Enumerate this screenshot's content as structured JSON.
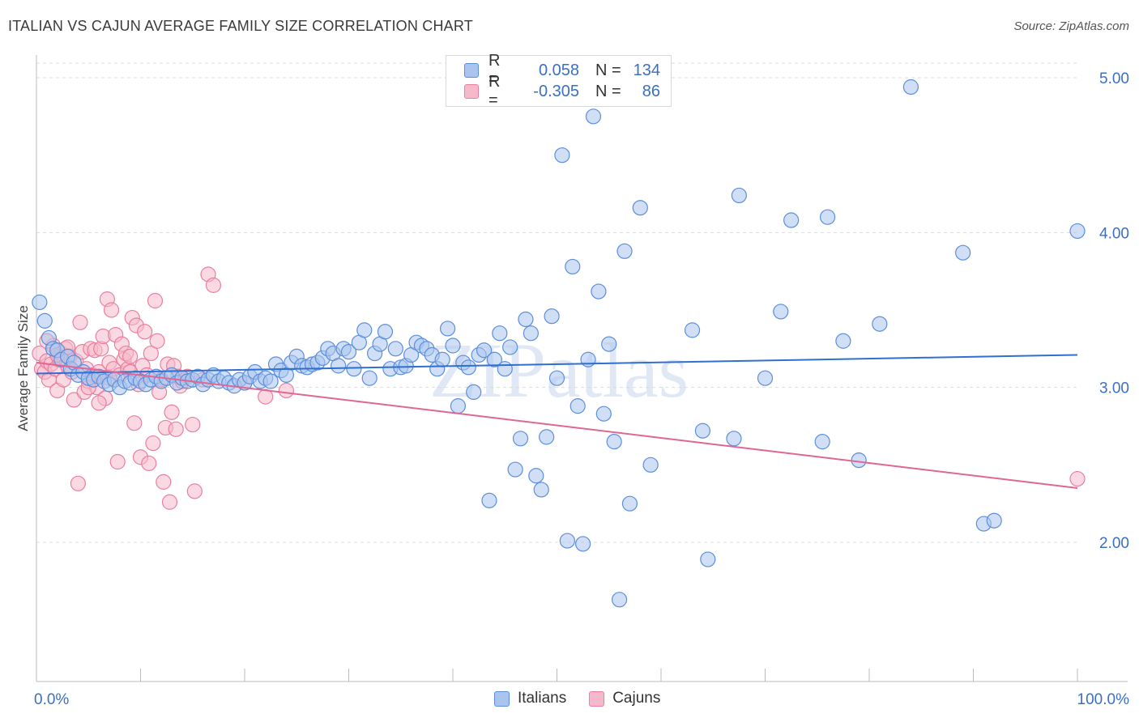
{
  "title": "ITALIAN VS CAJUN AVERAGE FAMILY SIZE CORRELATION CHART",
  "source": "Source: ZipAtlas.com",
  "watermark": "ZIPatlas",
  "legend": {
    "rows": [
      {
        "r_label": "R =",
        "r_value": "0.058",
        "n_label": "N =",
        "n_value": "134"
      },
      {
        "r_label": "R =",
        "r_value": "-0.305",
        "n_label": "N =",
        "n_value": "86"
      }
    ]
  },
  "bottom_legend": {
    "italians": "Italians",
    "cajuns": "Cajuns"
  },
  "colors": {
    "italians_fill": "#a9c4ee",
    "italians_stroke": "#5b8fdc",
    "italians_line": "#2f6fd0",
    "cajuns_fill": "#f6b9cb",
    "cajuns_stroke": "#ea7fa0",
    "cajuns_line": "#e06695",
    "axis_text": "#3b6fc4",
    "grid": "#dddddd"
  },
  "chart_data": {
    "type": "scatter",
    "title": "ITALIAN VS CAJUN AVERAGE FAMILY SIZE CORRELATION CHART",
    "xlabel": "",
    "ylabel": "Average Family Size",
    "xlim": [
      0,
      100
    ],
    "ylim": [
      1.0,
      5.2
    ],
    "x_tick_labels": [
      "0.0%",
      "100.0%"
    ],
    "y_ticks": [
      2.0,
      3.0,
      4.0,
      5.0
    ],
    "y_tick_labels": [
      "2.00",
      "3.00",
      "4.00",
      "5.00"
    ],
    "grid": true,
    "series": [
      {
        "name": "Italians",
        "r": 0.058,
        "n": 134,
        "trend": {
          "x": [
            0,
            100
          ],
          "y": [
            3.09,
            3.21
          ]
        },
        "points": [
          [
            0.3,
            3.55
          ],
          [
            0.8,
            3.43
          ],
          [
            1.2,
            3.32
          ],
          [
            1.6,
            3.25
          ],
          [
            2.0,
            3.24
          ],
          [
            2.4,
            3.18
          ],
          [
            3.0,
            3.2
          ],
          [
            3.3,
            3.12
          ],
          [
            3.6,
            3.16
          ],
          [
            4.0,
            3.08
          ],
          [
            4.5,
            3.1
          ],
          [
            5.0,
            3.06
          ],
          [
            5.5,
            3.05
          ],
          [
            6.0,
            3.07
          ],
          [
            6.5,
            3.04
          ],
          [
            7.0,
            3.02
          ],
          [
            7.5,
            3.05
          ],
          [
            8.0,
            3.0
          ],
          [
            8.5,
            3.04
          ],
          [
            9.0,
            3.03
          ],
          [
            9.5,
            3.06
          ],
          [
            10.0,
            3.04
          ],
          [
            10.5,
            3.02
          ],
          [
            11.0,
            3.05
          ],
          [
            11.5,
            3.07
          ],
          [
            12.0,
            3.04
          ],
          [
            12.5,
            3.06
          ],
          [
            13.0,
            3.08
          ],
          [
            13.5,
            3.03
          ],
          [
            14.0,
            3.06
          ],
          [
            14.5,
            3.04
          ],
          [
            15.0,
            3.05
          ],
          [
            15.5,
            3.07
          ],
          [
            16.0,
            3.02
          ],
          [
            16.5,
            3.05
          ],
          [
            17.0,
            3.08
          ],
          [
            17.5,
            3.04
          ],
          [
            18.0,
            3.06
          ],
          [
            18.5,
            3.03
          ],
          [
            19.0,
            3.01
          ],
          [
            19.5,
            3.05
          ],
          [
            20.0,
            3.03
          ],
          [
            20.5,
            3.07
          ],
          [
            21.0,
            3.1
          ],
          [
            21.5,
            3.04
          ],
          [
            22.0,
            3.06
          ],
          [
            22.5,
            3.04
          ],
          [
            23.0,
            3.15
          ],
          [
            23.5,
            3.11
          ],
          [
            24.0,
            3.08
          ],
          [
            24.5,
            3.16
          ],
          [
            25.0,
            3.2
          ],
          [
            25.5,
            3.14
          ],
          [
            26.0,
            3.13
          ],
          [
            26.5,
            3.15
          ],
          [
            27.0,
            3.16
          ],
          [
            27.5,
            3.19
          ],
          [
            28.0,
            3.25
          ],
          [
            28.5,
            3.22
          ],
          [
            29.0,
            3.14
          ],
          [
            29.5,
            3.25
          ],
          [
            30.0,
            3.23
          ],
          [
            30.5,
            3.12
          ],
          [
            31.0,
            3.29
          ],
          [
            31.5,
            3.37
          ],
          [
            32.0,
            3.06
          ],
          [
            32.5,
            3.22
          ],
          [
            33.0,
            3.28
          ],
          [
            33.5,
            3.36
          ],
          [
            34.0,
            3.12
          ],
          [
            34.5,
            3.25
          ],
          [
            35.0,
            3.13
          ],
          [
            35.5,
            3.14
          ],
          [
            36.0,
            3.21
          ],
          [
            36.5,
            3.29
          ],
          [
            37.0,
            3.27
          ],
          [
            37.5,
            3.25
          ],
          [
            38.0,
            3.21
          ],
          [
            38.5,
            3.12
          ],
          [
            39.0,
            3.18
          ],
          [
            39.5,
            3.38
          ],
          [
            40.0,
            3.27
          ],
          [
            40.5,
            2.88
          ],
          [
            41.0,
            3.16
          ],
          [
            41.5,
            3.13
          ],
          [
            42.0,
            2.97
          ],
          [
            42.5,
            3.21
          ],
          [
            43.0,
            3.24
          ],
          [
            43.5,
            2.27
          ],
          [
            44.0,
            3.18
          ],
          [
            44.5,
            3.35
          ],
          [
            45.0,
            3.12
          ],
          [
            45.5,
            3.26
          ],
          [
            46.0,
            2.47
          ],
          [
            46.5,
            2.67
          ],
          [
            47.0,
            3.44
          ],
          [
            47.5,
            3.35
          ],
          [
            48.0,
            2.43
          ],
          [
            48.5,
            2.34
          ],
          [
            49.0,
            2.68
          ],
          [
            49.5,
            3.46
          ],
          [
            50.0,
            3.06
          ],
          [
            50.5,
            4.5
          ],
          [
            51.0,
            2.01
          ],
          [
            51.5,
            3.78
          ],
          [
            52.0,
            2.88
          ],
          [
            52.5,
            1.99
          ],
          [
            53.0,
            3.18
          ],
          [
            53.5,
            4.75
          ],
          [
            54.0,
            3.62
          ],
          [
            54.5,
            2.83
          ],
          [
            55.0,
            3.28
          ],
          [
            55.5,
            2.65
          ],
          [
            56.0,
            1.63
          ],
          [
            56.5,
            3.88
          ],
          [
            57.0,
            2.25
          ],
          [
            58.0,
            4.16
          ],
          [
            59.0,
            2.5
          ],
          [
            63.0,
            3.37
          ],
          [
            64.0,
            2.72
          ],
          [
            64.5,
            1.89
          ],
          [
            67.0,
            2.67
          ],
          [
            67.5,
            4.24
          ],
          [
            70.0,
            3.06
          ],
          [
            71.5,
            3.49
          ],
          [
            72.5,
            4.08
          ],
          [
            75.5,
            2.65
          ],
          [
            76.0,
            4.1
          ],
          [
            77.5,
            3.3
          ],
          [
            79.0,
            2.53
          ],
          [
            81.0,
            3.41
          ],
          [
            84.0,
            4.94
          ],
          [
            89.0,
            3.87
          ],
          [
            91.0,
            2.12
          ],
          [
            92.0,
            2.14
          ],
          [
            100.0,
            4.01
          ]
        ]
      },
      {
        "name": "Cajuns",
        "r": -0.305,
        "n": 86,
        "trend": {
          "x": [
            0,
            100
          ],
          "y": [
            3.16,
            2.35
          ]
        },
        "points": [
          [
            0.3,
            3.22
          ],
          [
            0.5,
            3.12
          ],
          [
            0.8,
            3.1
          ],
          [
            1.0,
            3.17
          ],
          [
            1.2,
            3.05
          ],
          [
            1.4,
            3.15
          ],
          [
            1.6,
            3.27
          ],
          [
            1.8,
            3.12
          ],
          [
            2.0,
            2.98
          ],
          [
            2.2,
            3.18
          ],
          [
            2.4,
            3.22
          ],
          [
            2.6,
            3.05
          ],
          [
            2.8,
            3.25
          ],
          [
            3.0,
            3.14
          ],
          [
            3.2,
            3.2
          ],
          [
            3.4,
            3.1
          ],
          [
            3.6,
            2.92
          ],
          [
            3.8,
            3.17
          ],
          [
            4.0,
            2.38
          ],
          [
            4.2,
            3.42
          ],
          [
            4.4,
            3.23
          ],
          [
            4.6,
            2.97
          ],
          [
            4.8,
            3.12
          ],
          [
            5.0,
            3.04
          ],
          [
            5.2,
            3.25
          ],
          [
            5.4,
            3.08
          ],
          [
            5.6,
            3.24
          ],
          [
            5.8,
            3.0
          ],
          [
            6.0,
            3.1
          ],
          [
            6.2,
            3.25
          ],
          [
            6.4,
            3.33
          ],
          [
            6.6,
            2.93
          ],
          [
            6.8,
            3.57
          ],
          [
            7.0,
            3.16
          ],
          [
            7.2,
            3.5
          ],
          [
            7.4,
            3.12
          ],
          [
            7.6,
            3.34
          ],
          [
            7.8,
            2.52
          ],
          [
            8.0,
            3.08
          ],
          [
            8.2,
            3.28
          ],
          [
            8.4,
            3.18
          ],
          [
            8.6,
            3.22
          ],
          [
            8.8,
            3.12
          ],
          [
            9.0,
            3.2
          ],
          [
            9.2,
            3.45
          ],
          [
            9.4,
            2.77
          ],
          [
            9.6,
            3.4
          ],
          [
            9.8,
            3.02
          ],
          [
            10.0,
            2.55
          ],
          [
            10.2,
            3.14
          ],
          [
            10.4,
            3.36
          ],
          [
            10.6,
            3.08
          ],
          [
            10.8,
            2.51
          ],
          [
            11.0,
            3.22
          ],
          [
            11.2,
            2.64
          ],
          [
            11.4,
            3.56
          ],
          [
            11.6,
            3.3
          ],
          [
            11.8,
            2.97
          ],
          [
            12.0,
            3.05
          ],
          [
            12.2,
            2.39
          ],
          [
            12.4,
            2.74
          ],
          [
            12.6,
            3.15
          ],
          [
            12.8,
            2.26
          ],
          [
            13.0,
            2.84
          ],
          [
            13.2,
            3.14
          ],
          [
            13.4,
            2.73
          ],
          [
            13.6,
            3.07
          ],
          [
            13.8,
            3.01
          ],
          [
            14.0,
            3.04
          ],
          [
            14.5,
            3.07
          ],
          [
            15.0,
            2.76
          ],
          [
            15.2,
            2.33
          ],
          [
            16.0,
            3.05
          ],
          [
            16.5,
            3.73
          ],
          [
            17.0,
            3.66
          ],
          [
            20.0,
            3.03
          ],
          [
            22.0,
            2.94
          ],
          [
            24.0,
            2.98
          ],
          [
            1.0,
            3.3
          ],
          [
            2.0,
            3.21
          ],
          [
            3.0,
            3.26
          ],
          [
            5.0,
            3.0
          ],
          [
            6.0,
            2.9
          ],
          [
            7.0,
            3.06
          ],
          [
            9.0,
            3.1
          ],
          [
            100.0,
            2.41
          ]
        ]
      }
    ]
  }
}
